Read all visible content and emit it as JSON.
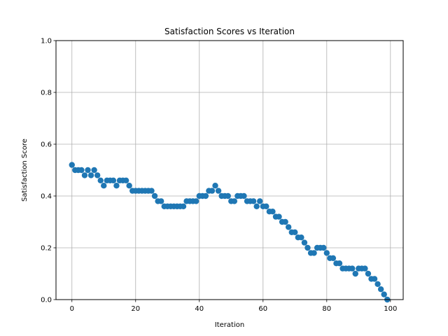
{
  "chart_data": {
    "type": "scatter",
    "title": "Satisfaction Scores vs Iteration",
    "xlabel": "Iteration",
    "ylabel": "Satisfaction Score",
    "xlim": [
      -5,
      104
    ],
    "ylim": [
      0,
      1.0
    ],
    "x_ticks": [
      "0",
      "20",
      "40",
      "60",
      "80",
      "100"
    ],
    "y_ticks": [
      "0.0",
      "0.2",
      "0.4",
      "0.6",
      "0.8",
      "1.0"
    ],
    "grid": true,
    "legend": "none",
    "marker_color": "#1f77b4",
    "x": [
      0,
      1,
      2,
      3,
      4,
      5,
      6,
      7,
      8,
      9,
      10,
      11,
      12,
      13,
      14,
      15,
      16,
      17,
      18,
      19,
      20,
      21,
      22,
      23,
      24,
      25,
      26,
      27,
      28,
      29,
      30,
      31,
      32,
      33,
      34,
      35,
      36,
      37,
      38,
      39,
      40,
      41,
      42,
      43,
      44,
      45,
      46,
      47,
      48,
      49,
      50,
      51,
      52,
      53,
      54,
      55,
      56,
      57,
      58,
      59,
      60,
      61,
      62,
      63,
      64,
      65,
      66,
      67,
      68,
      69,
      70,
      71,
      72,
      73,
      74,
      75,
      76,
      77,
      78,
      79,
      80,
      81,
      82,
      83,
      84,
      85,
      86,
      87,
      88,
      89,
      90,
      91,
      92,
      93,
      94,
      95,
      96,
      97,
      98,
      99
    ],
    "y": [
      0.52,
      0.5,
      0.5,
      0.5,
      0.48,
      0.5,
      0.48,
      0.5,
      0.48,
      0.46,
      0.44,
      0.46,
      0.46,
      0.46,
      0.44,
      0.46,
      0.46,
      0.46,
      0.44,
      0.42,
      0.42,
      0.42,
      0.42,
      0.42,
      0.42,
      0.42,
      0.4,
      0.38,
      0.38,
      0.36,
      0.36,
      0.36,
      0.36,
      0.36,
      0.36,
      0.36,
      0.38,
      0.38,
      0.38,
      0.38,
      0.4,
      0.4,
      0.4,
      0.42,
      0.42,
      0.44,
      0.42,
      0.4,
      0.4,
      0.4,
      0.38,
      0.38,
      0.4,
      0.4,
      0.4,
      0.38,
      0.38,
      0.38,
      0.36,
      0.38,
      0.36,
      0.36,
      0.34,
      0.34,
      0.32,
      0.32,
      0.3,
      0.3,
      0.28,
      0.26,
      0.26,
      0.24,
      0.24,
      0.22,
      0.2,
      0.18,
      0.18,
      0.2,
      0.2,
      0.2,
      0.18,
      0.16,
      0.16,
      0.14,
      0.14,
      0.12,
      0.12,
      0.12,
      0.12,
      0.1,
      0.12,
      0.12,
      0.12,
      0.1,
      0.08,
      0.08,
      0.06,
      0.04,
      0.02,
      0.0
    ]
  }
}
